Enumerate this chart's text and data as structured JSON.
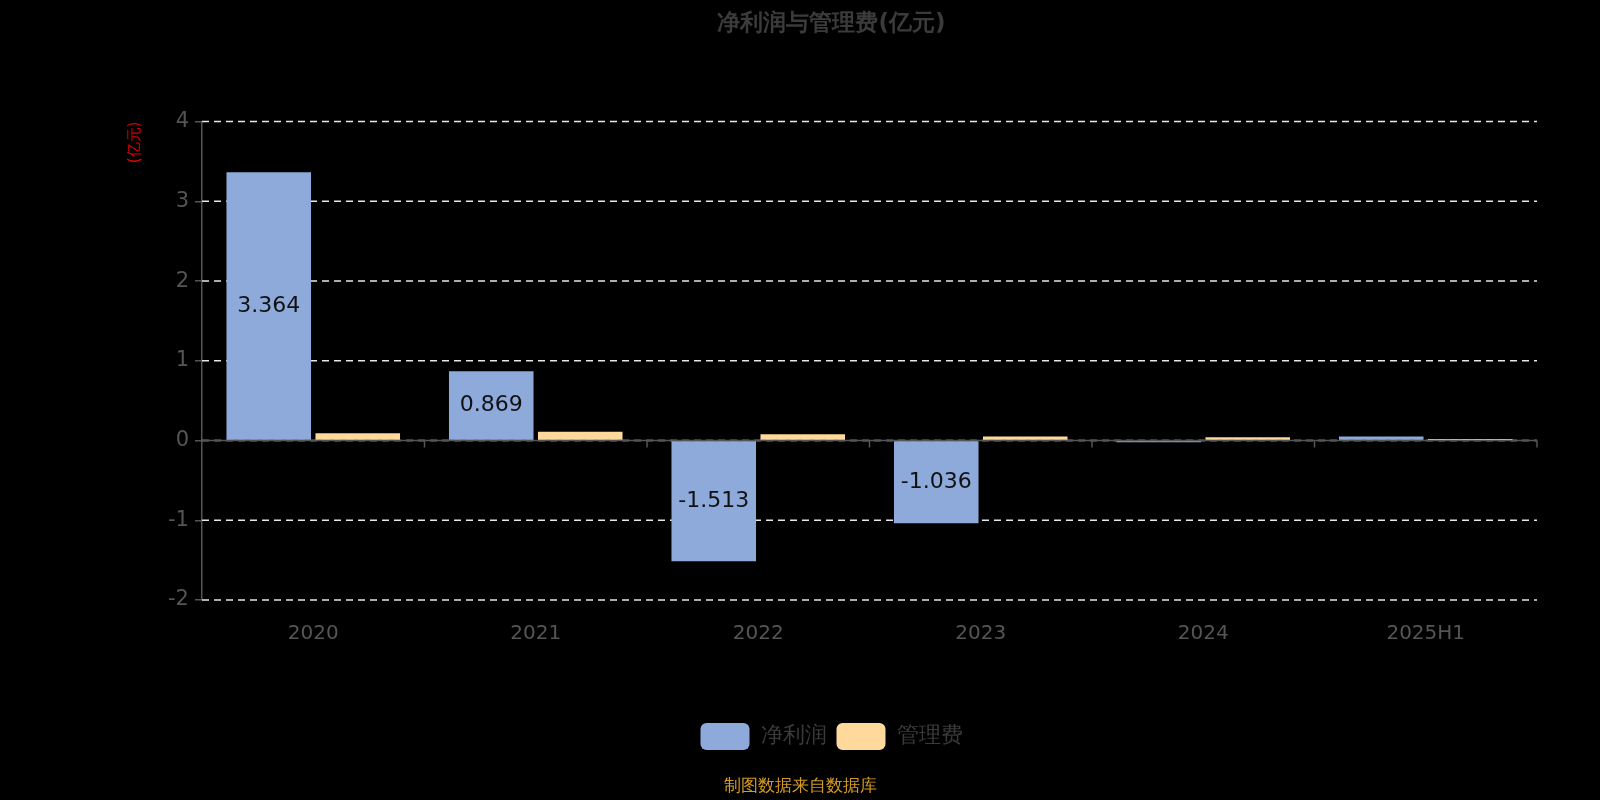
{
  "chart_data": {
    "type": "bar",
    "title": "净利润与管理费(亿元)",
    "ylabel": "(亿元)",
    "categories": [
      "2020",
      "2021",
      "2022",
      "2023",
      "2024",
      "2025H1"
    ],
    "series": [
      {
        "name": "净利润",
        "color": "#8eaadb",
        "values": [
          3.364,
          0.869,
          -1.513,
          -1.036,
          -0.02,
          0.05
        ],
        "value_labels": [
          "3.364",
          "0.869",
          "-1.513",
          "-1.036",
          null,
          null
        ]
      },
      {
        "name": "管理费",
        "color": "#ffd89b",
        "values": [
          0.09,
          0.11,
          0.08,
          0.05,
          0.04,
          0.02
        ]
      }
    ],
    "ylim": [
      -2,
      4
    ],
    "yticks": [
      -2,
      -1,
      0,
      1,
      2,
      3,
      4
    ],
    "grid": "y",
    "legend": "bottom",
    "annotations": [
      "制图数据来自数据库"
    ]
  }
}
